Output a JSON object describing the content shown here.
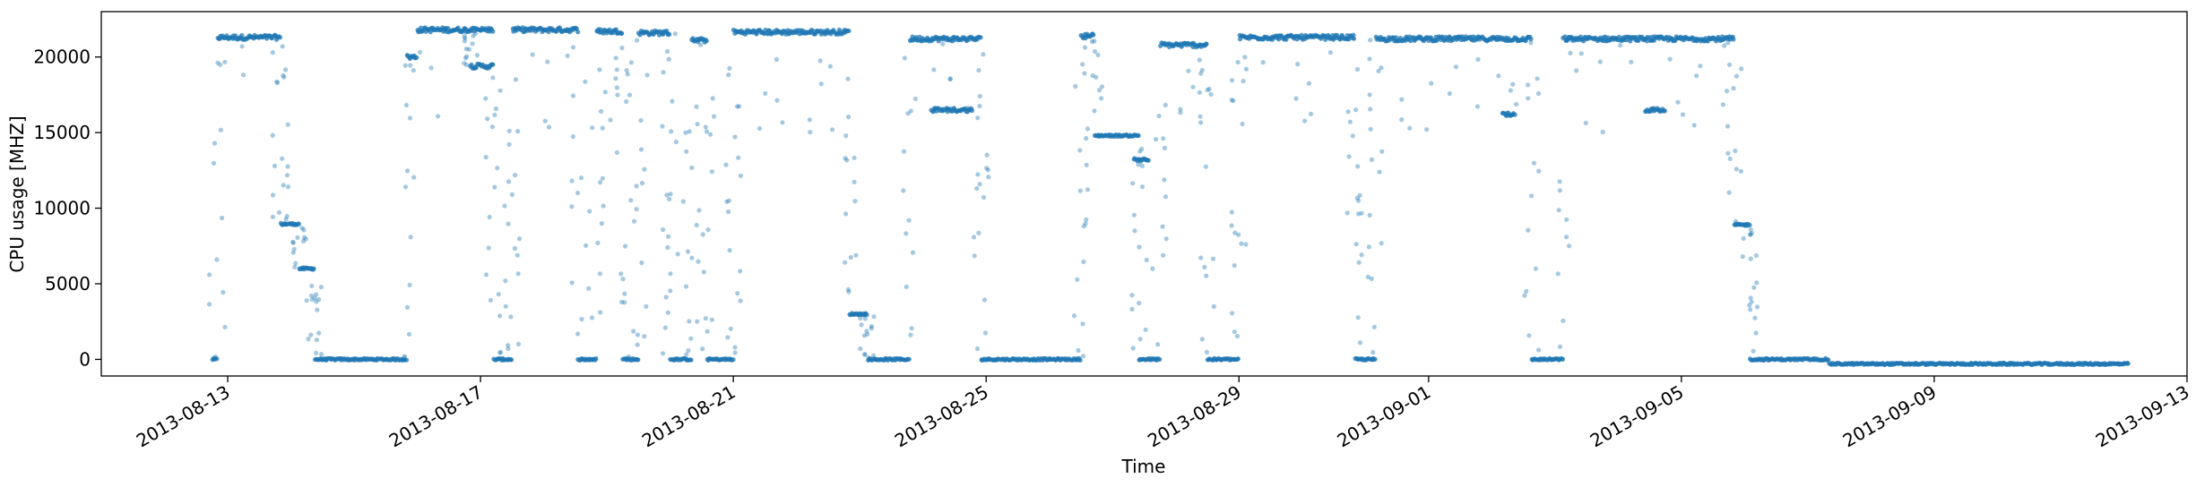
{
  "chart_data": {
    "type": "scatter",
    "title": "",
    "xlabel": "Time",
    "ylabel": "CPU usage [MHZ]",
    "x_tick_labels": [
      "2013-08-13",
      "2013-08-17",
      "2013-08-21",
      "2013-08-25",
      "2013-08-29",
      "2013-09-01",
      "2013-09-05",
      "2013-09-09",
      "2013-09-13"
    ],
    "y_tick_labels": [
      "0",
      "5000",
      "10000",
      "15000",
      "20000"
    ],
    "y_ticks": [
      0,
      5000,
      10000,
      15000,
      20000
    ],
    "xlim": [
      "2013-08-11",
      "2013-09-13"
    ],
    "ylim": [
      -1100,
      23000
    ],
    "grid": false,
    "marker_color": "#1f77b4",
    "series": [
      {
        "segments": [
          {
            "start": "2013-08-12T18:00",
            "end": "2013-08-12T20:00",
            "level": 0
          },
          {
            "start": "2013-08-12T20:00",
            "end": "2013-08-13T20:00",
            "level": 21300
          },
          {
            "start": "2013-08-13T20:00",
            "end": "2013-08-14T03:00",
            "level": 8950
          },
          {
            "start": "2013-08-14T03:00",
            "end": "2013-08-14T09:00",
            "level": 6000
          },
          {
            "start": "2013-08-14T09:00",
            "end": "2013-08-15T20:00",
            "level": 0
          },
          {
            "start": "2013-08-15T20:00",
            "end": "2013-08-16T00:00",
            "level": 20000
          },
          {
            "start": "2013-08-16T00:00",
            "end": "2013-08-16T20:00",
            "level": 21800
          },
          {
            "start": "2013-08-16T20:00",
            "end": "2013-08-17T05:00",
            "level": 19400
          },
          {
            "start": "2013-08-17T05:00",
            "end": "2013-08-17T12:00",
            "level": 0
          },
          {
            "start": "2013-08-17T12:00",
            "end": "2013-08-18T13:00",
            "level": 21800
          },
          {
            "start": "2013-08-18T13:00",
            "end": "2013-08-18T20:00",
            "level": 0
          },
          {
            "start": "2013-08-18T20:00",
            "end": "2013-08-19T06:00",
            "level": 21700
          },
          {
            "start": "2013-08-19T06:00",
            "end": "2013-08-19T12:00",
            "level": 0
          },
          {
            "start": "2013-08-19T12:00",
            "end": "2013-08-20T00:00",
            "level": 21600
          },
          {
            "start": "2013-08-20T00:00",
            "end": "2013-08-20T08:00",
            "level": 0
          },
          {
            "start": "2013-08-20T08:00",
            "end": "2013-08-20T14:00",
            "level": 21100
          },
          {
            "start": "2013-08-20T14:00",
            "end": "2013-08-21T00:00",
            "level": 0
          },
          {
            "start": "2013-08-21T00:00",
            "end": "2013-08-22T20:00",
            "level": 21650
          },
          {
            "start": "2013-08-22T20:00",
            "end": "2013-08-23T03:00",
            "level": 3000
          },
          {
            "start": "2013-08-23T03:00",
            "end": "2013-08-23T19:00",
            "level": 0
          },
          {
            "start": "2013-08-23T19:00",
            "end": "2013-08-24T22:00",
            "level": 21200
          },
          {
            "start": "2013-08-24T22:00",
            "end": "2013-08-26T12:00",
            "level": 0
          },
          {
            "start": "2013-08-26T12:00",
            "end": "2013-08-26T17:00",
            "level": 21400
          },
          {
            "start": "2013-08-26T17:00",
            "end": "2013-08-27T10:00",
            "level": 14800
          },
          {
            "start": "2013-08-27T10:00",
            "end": "2013-08-27T18:00",
            "level": 0
          },
          {
            "start": "2013-08-27T18:00",
            "end": "2013-08-28T12:00",
            "level": 20800
          },
          {
            "start": "2013-08-28T12:00",
            "end": "2013-08-29T00:00",
            "level": 0
          },
          {
            "start": "2013-08-29T00:00",
            "end": "2013-08-30T20:00",
            "level": 21300
          },
          {
            "start": "2013-08-30T20:00",
            "end": "2013-08-31T04:00",
            "level": 0
          },
          {
            "start": "2013-08-31T04:00",
            "end": "2013-09-02T15:00",
            "level": 21200
          },
          {
            "start": "2013-09-02T15:00",
            "end": "2013-09-03T03:00",
            "level": 0
          },
          {
            "start": "2013-09-03T03:00",
            "end": "2013-09-05T13:00",
            "level": 21200
          },
          {
            "start": "2013-09-05T13:00",
            "end": "2013-09-05T20:00",
            "level": 21200
          },
          {
            "start": "2013-09-05T20:00",
            "end": "2013-09-06T02:00",
            "level": 8900
          },
          {
            "start": "2013-09-06T02:00",
            "end": "2013-09-07T08:00",
            "level": 0
          },
          {
            "start": "2013-09-07T08:00",
            "end": "2013-09-12T02:00",
            "level": -300
          }
        ]
      }
    ],
    "secondary_bands": [
      {
        "start": "2013-08-16T20:00",
        "end": "2013-08-17T05:00",
        "level": 21800
      },
      {
        "start": "2013-08-24T03:00",
        "end": "2013-08-24T19:00",
        "level": 16500
      },
      {
        "start": "2013-08-27T08:00",
        "end": "2013-08-27T14:00",
        "level": 13200
      },
      {
        "start": "2013-09-02T04:00",
        "end": "2013-09-02T09:00",
        "level": 16200
      },
      {
        "start": "2013-09-04T10:00",
        "end": "2013-09-04T18:00",
        "level": 16500
      }
    ]
  }
}
